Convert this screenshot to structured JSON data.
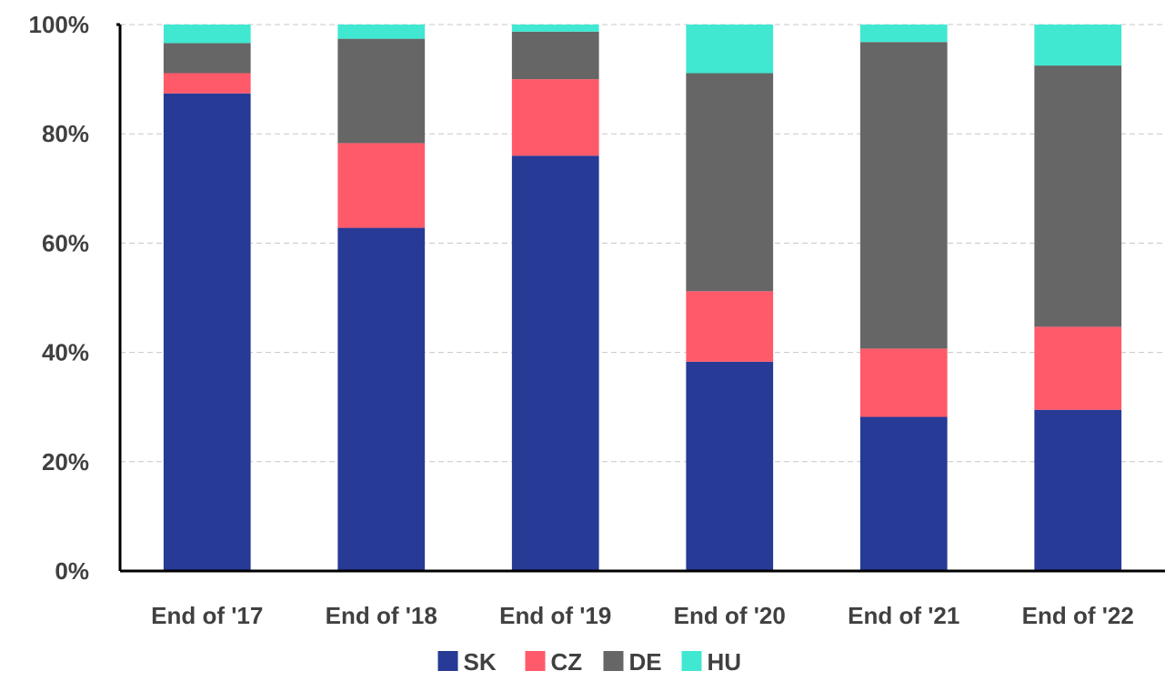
{
  "chart_data": {
    "type": "bar",
    "stacked": true,
    "percent": true,
    "categories": [
      "End of '17",
      "End of '18",
      "End of '19",
      "End of '20",
      "End of '21",
      "End of '22"
    ],
    "series": [
      {
        "name": "SK",
        "color": "#273A96",
        "values": [
          87.4,
          62.8,
          76.0,
          38.3,
          28.2,
          29.5
        ]
      },
      {
        "name": "CZ",
        "color": "#FF5A6A",
        "values": [
          3.7,
          15.5,
          14.0,
          12.9,
          12.5,
          15.2
        ]
      },
      {
        "name": "DE",
        "color": "#666666",
        "values": [
          5.5,
          19.1,
          8.7,
          39.9,
          56.1,
          47.8
        ]
      },
      {
        "name": "HU",
        "color": "#40E8D2",
        "values": [
          3.4,
          2.6,
          1.3,
          8.9,
          3.2,
          7.5
        ]
      }
    ],
    "y_ticks": [
      "0%",
      "20%",
      "40%",
      "60%",
      "80%",
      "100%"
    ],
    "ylim": [
      0,
      100
    ],
    "grid": true,
    "legend": "bottom-center"
  }
}
